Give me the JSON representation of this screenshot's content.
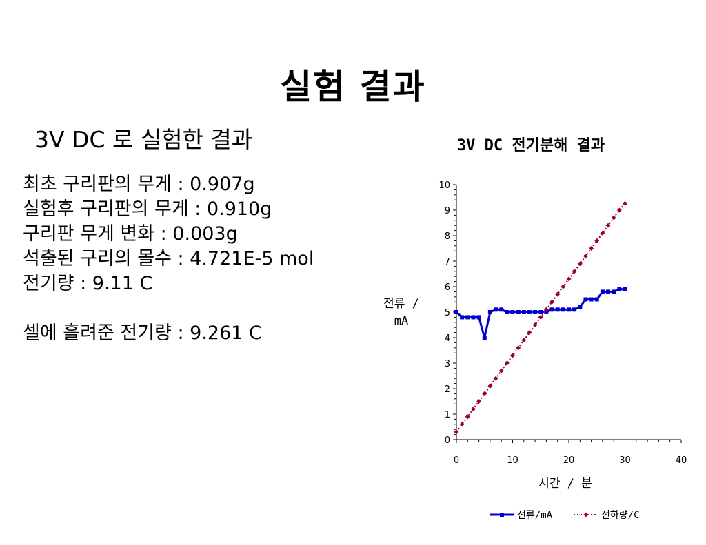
{
  "slide": {
    "title": "실험 결과",
    "subtitle": "3V DC 로 실험한 결과",
    "lines": [
      "최초 구리판의 무게 : 0.907g",
      "실험후 구리판의 무게 : 0.910g",
      "구리판 무게 변화 : 0.003g",
      "석출된 구리의 몰수 : 4.721E-5 mol",
      "전기량 : 9.11 C",
      "셀에 흘려준 전기량 : 9.261 C"
    ]
  },
  "chart_data": {
    "type": "line",
    "title": "3V DC 전기분해 결과",
    "xlabel": "시간 / 분",
    "ylabel": "전류 / mA",
    "xlim": [
      0,
      40
    ],
    "ylim": [
      0,
      10
    ],
    "xticks": [
      "0",
      "10",
      "20",
      "30",
      "40"
    ],
    "yticks": [
      "0",
      "1",
      "2",
      "3",
      "4",
      "5",
      "6",
      "7",
      "8",
      "9",
      "10"
    ],
    "grid": false,
    "legend_position": "bottom",
    "series": [
      {
        "name": "전류/mA",
        "color": "#0000cc",
        "style": "solid",
        "marker": "square",
        "x": [
          0,
          1,
          2,
          3,
          4,
          5,
          6,
          7,
          8,
          9,
          10,
          11,
          12,
          13,
          14,
          15,
          16,
          17,
          18,
          19,
          20,
          21,
          22,
          23,
          24,
          25,
          26,
          27,
          28,
          29,
          30
        ],
        "y": [
          5.0,
          4.8,
          4.8,
          4.8,
          4.8,
          4.0,
          5.0,
          5.1,
          5.1,
          5.0,
          5.0,
          5.0,
          5.0,
          5.0,
          5.0,
          5.0,
          5.0,
          5.1,
          5.1,
          5.1,
          5.1,
          5.1,
          5.2,
          5.5,
          5.5,
          5.5,
          5.8,
          5.8,
          5.8,
          5.9,
          5.9
        ]
      },
      {
        "name": "전하량/C",
        "color": "#990033",
        "style": "dotted",
        "marker": "diamond",
        "x": [
          0,
          1,
          2,
          3,
          4,
          5,
          6,
          7,
          8,
          9,
          10,
          11,
          12,
          13,
          14,
          15,
          16,
          17,
          18,
          19,
          20,
          21,
          22,
          23,
          24,
          25,
          26,
          27,
          28,
          29,
          30
        ],
        "y": [
          0.3,
          0.6,
          0.9,
          1.2,
          1.5,
          1.8,
          2.1,
          2.4,
          2.7,
          3.0,
          3.3,
          3.6,
          3.9,
          4.2,
          4.5,
          4.8,
          5.1,
          5.4,
          5.7,
          6.0,
          6.3,
          6.6,
          6.9,
          7.2,
          7.5,
          7.8,
          8.1,
          8.4,
          8.7,
          9.0,
          9.26
        ]
      }
    ]
  }
}
